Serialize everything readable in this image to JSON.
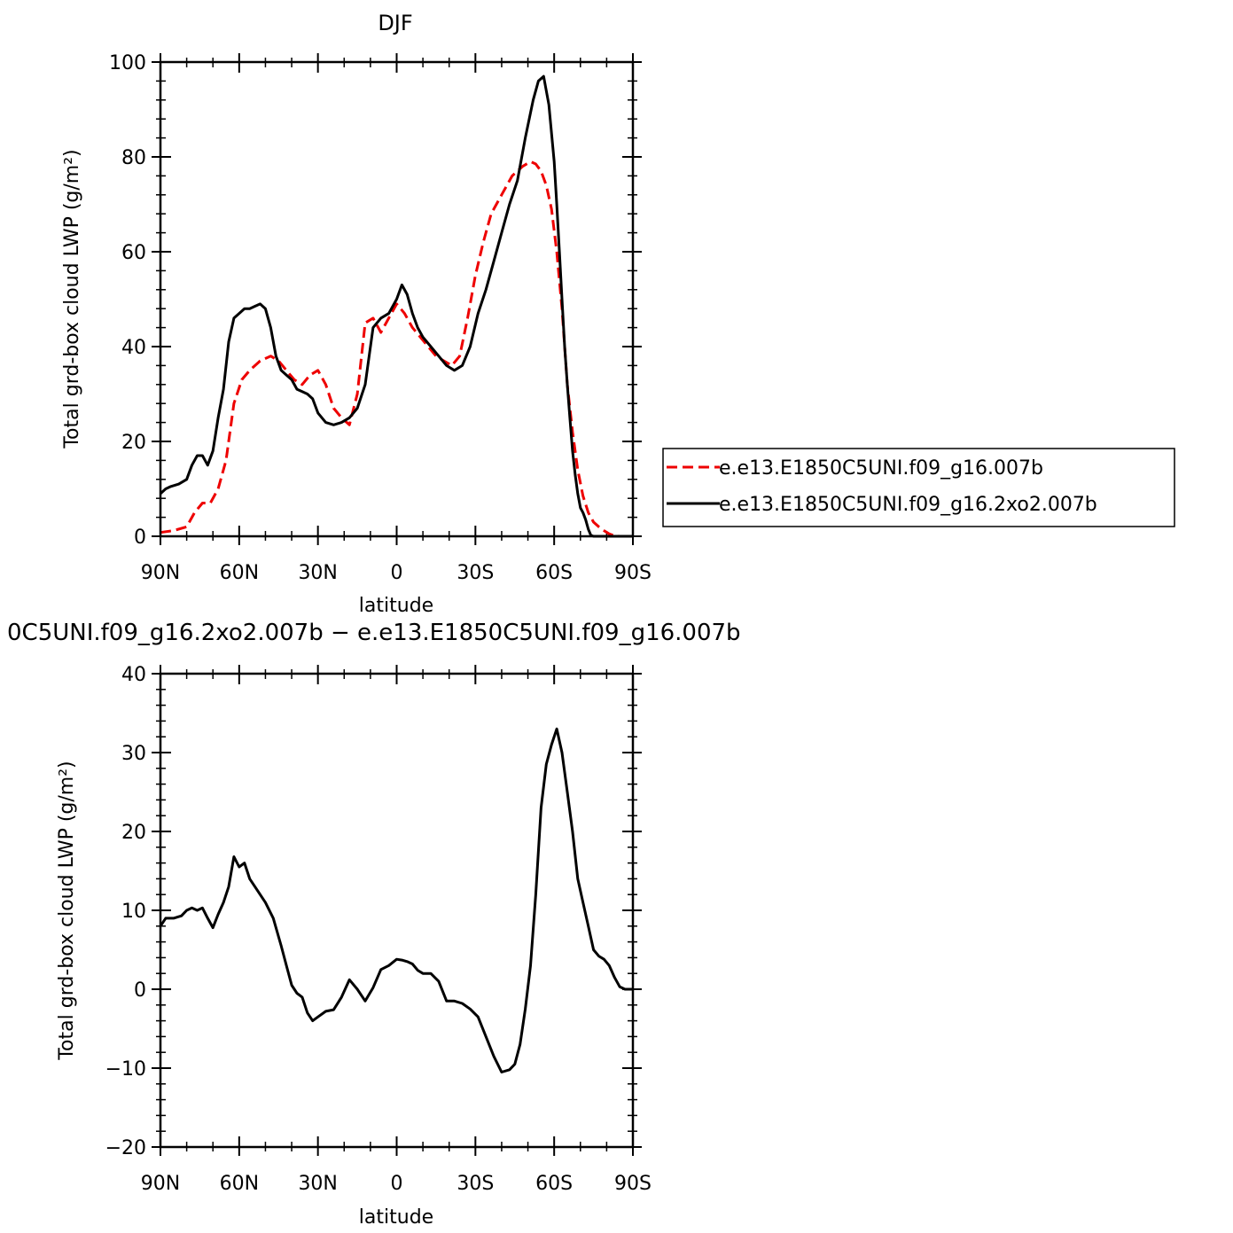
{
  "chart_data": [
    {
      "type": "line",
      "title": "DJF",
      "xlabel": "latitude",
      "ylabel": "Total grd-box cloud LWP (g/m²)",
      "xlim": [
        90,
        -90
      ],
      "ylim": [
        0,
        100
      ],
      "x_ticks": [
        90,
        60,
        30,
        0,
        -30,
        -60,
        -90
      ],
      "x_tick_labels": [
        "90N",
        "60N",
        "30N",
        "0",
        "30S",
        "60S",
        "90S"
      ],
      "y_ticks": [
        0,
        20,
        40,
        60,
        80,
        100
      ],
      "y_tick_labels": [
        "0",
        "20",
        "40",
        "60",
        "80",
        "100"
      ],
      "legend_position": "right",
      "series": [
        {
          "name": "e.e13.E1850C5UNI.f09_g16.007b",
          "color": "#ee0000",
          "style": "dashed",
          "x": [
            90,
            85,
            80,
            77,
            74,
            71,
            68,
            65,
            62,
            59,
            56,
            52,
            48,
            45,
            42,
            39,
            36,
            33,
            30,
            27,
            24,
            21,
            18,
            15,
            12,
            9,
            6,
            3,
            0,
            -3,
            -6,
            -9,
            -12,
            -15,
            -18,
            -21,
            -24,
            -27,
            -30,
            -33,
            -36,
            -40,
            -44,
            -48,
            -51,
            -53,
            -55,
            -57,
            -59,
            -61,
            -63,
            -65,
            -67,
            -69,
            -71,
            -73,
            -75,
            -77,
            -79,
            -81,
            -83,
            -85,
            -87,
            -90
          ],
          "y": [
            0.8,
            1.2,
            2,
            5,
            7,
            7,
            10,
            16,
            28,
            33,
            35,
            37,
            38,
            37,
            35,
            33,
            32,
            34,
            35,
            32,
            27,
            25,
            23.5,
            30,
            45,
            46,
            43,
            46,
            49,
            47,
            44,
            42,
            40,
            38,
            37,
            36,
            38,
            46,
            55,
            62,
            68,
            72,
            76,
            78,
            79,
            78.5,
            77,
            74,
            69,
            60,
            48,
            32,
            22,
            14,
            8.5,
            5,
            3,
            2,
            1.2,
            0.5,
            0.1,
            0,
            0,
            0
          ]
        },
        {
          "name": "e.e13.E1850C5UNI.f09_g16.2xo2.007b",
          "color": "#000000",
          "style": "solid",
          "x": [
            90,
            88,
            86,
            83,
            80,
            78,
            76,
            74,
            72,
            70,
            68,
            66,
            64,
            62,
            60,
            58,
            56,
            54,
            52,
            50,
            48,
            46,
            44,
            42,
            40,
            38,
            36,
            34,
            32,
            30,
            27,
            24,
            21,
            18,
            15,
            12,
            9,
            6,
            3,
            0,
            -2,
            -4,
            -6,
            -8,
            -10,
            -13,
            -16,
            -19,
            -22,
            -25,
            -28,
            -31,
            -34,
            -37,
            -40,
            -43,
            -46,
            -49,
            -52,
            -54,
            -56,
            -58,
            -60,
            -61,
            -62,
            -63,
            -64,
            -65,
            -66,
            -67,
            -68,
            -69,
            -70,
            -71,
            -72,
            -73,
            -74,
            -75,
            -76,
            -77,
            -78,
            -79,
            -80,
            -81,
            -82,
            -83,
            -84,
            -85,
            -86,
            -87,
            -88,
            -89,
            -90
          ],
          "y": [
            9,
            10,
            10.5,
            11,
            12,
            15,
            17,
            17,
            15,
            18,
            25,
            31,
            41,
            46,
            47,
            48,
            48,
            48.5,
            49,
            48,
            44,
            38,
            35,
            34,
            33,
            31,
            30.5,
            30,
            29,
            26,
            24,
            23.5,
            24,
            25,
            27,
            32,
            44,
            46,
            47,
            50,
            53,
            51,
            47,
            44,
            42,
            40,
            38,
            36,
            35,
            36,
            40,
            47,
            52,
            58,
            64,
            70,
            75,
            84,
            92,
            96,
            97,
            91,
            79,
            70,
            60,
            50,
            40,
            32,
            25,
            18,
            13,
            9,
            6,
            5,
            3.5,
            1.5,
            0.2,
            0,
            0,
            0,
            0,
            0,
            0,
            0,
            0,
            0,
            0,
            0,
            0,
            0,
            0,
            0,
            0
          ]
        }
      ]
    },
    {
      "type": "line",
      "title": "0C5UNI.f09_g16.2xo2.007b − e.e13.E1850C5UNI.f09_g16.007b",
      "xlabel": "latitude",
      "ylabel": "Total grd-box cloud LWP (g/m²)",
      "xlim": [
        90,
        -90
      ],
      "ylim": [
        -20,
        40
      ],
      "x_ticks": [
        90,
        60,
        30,
        0,
        -30,
        -60,
        -90
      ],
      "x_tick_labels": [
        "90N",
        "60N",
        "30N",
        "0",
        "30S",
        "60S",
        "90S"
      ],
      "y_ticks": [
        -20,
        -10,
        0,
        10,
        20,
        30,
        40
      ],
      "y_tick_labels": [
        "−20",
        "−10",
        "0",
        "10",
        "20",
        "30",
        "40"
      ],
      "series": [
        {
          "color": "#000000",
          "style": "solid",
          "x": [
            90,
            88,
            85,
            82,
            80,
            78,
            76,
            74,
            72,
            70,
            68,
            66,
            64,
            62,
            60,
            58,
            56,
            53,
            50,
            47,
            44,
            42,
            40,
            38,
            36,
            34,
            32,
            30,
            27,
            24,
            21,
            18,
            15,
            12,
            9,
            6,
            3,
            0,
            -2,
            -4,
            -6,
            -8,
            -10,
            -13,
            -16,
            -19,
            -22,
            -25,
            -28,
            -31,
            -34,
            -37,
            -40,
            -43,
            -45,
            -47,
            -49,
            -51,
            -53,
            -55,
            -57,
            -59,
            -61,
            -63,
            -65,
            -67,
            -69,
            -71,
            -73,
            -75,
            -77,
            -79,
            -81,
            -83,
            -85,
            -87,
            -90
          ],
          "y": [
            8,
            9,
            9,
            9.3,
            10,
            10.3,
            10,
            10.3,
            9,
            7.8,
            9.5,
            11,
            13,
            16.8,
            15.5,
            16,
            14,
            12.5,
            11,
            9,
            5.5,
            3,
            0.5,
            -0.5,
            -1,
            -3,
            -4,
            -3.5,
            -2.8,
            -2.6,
            -1,
            1.2,
            0,
            -1.5,
            0.2,
            2.5,
            3,
            3.8,
            3.7,
            3.5,
            3.2,
            2.4,
            2,
            2,
            1,
            -1.5,
            -1.5,
            -1.8,
            -2.5,
            -3.5,
            -6,
            -8.5,
            -10.5,
            -10.2,
            -9.5,
            -7,
            -2.5,
            3,
            12,
            23,
            28.5,
            31,
            33,
            30,
            25,
            20,
            14,
            11,
            8,
            5,
            4.2,
            3.8,
            3,
            1.5,
            0.3,
            0,
            0
          ]
        }
      ]
    }
  ]
}
